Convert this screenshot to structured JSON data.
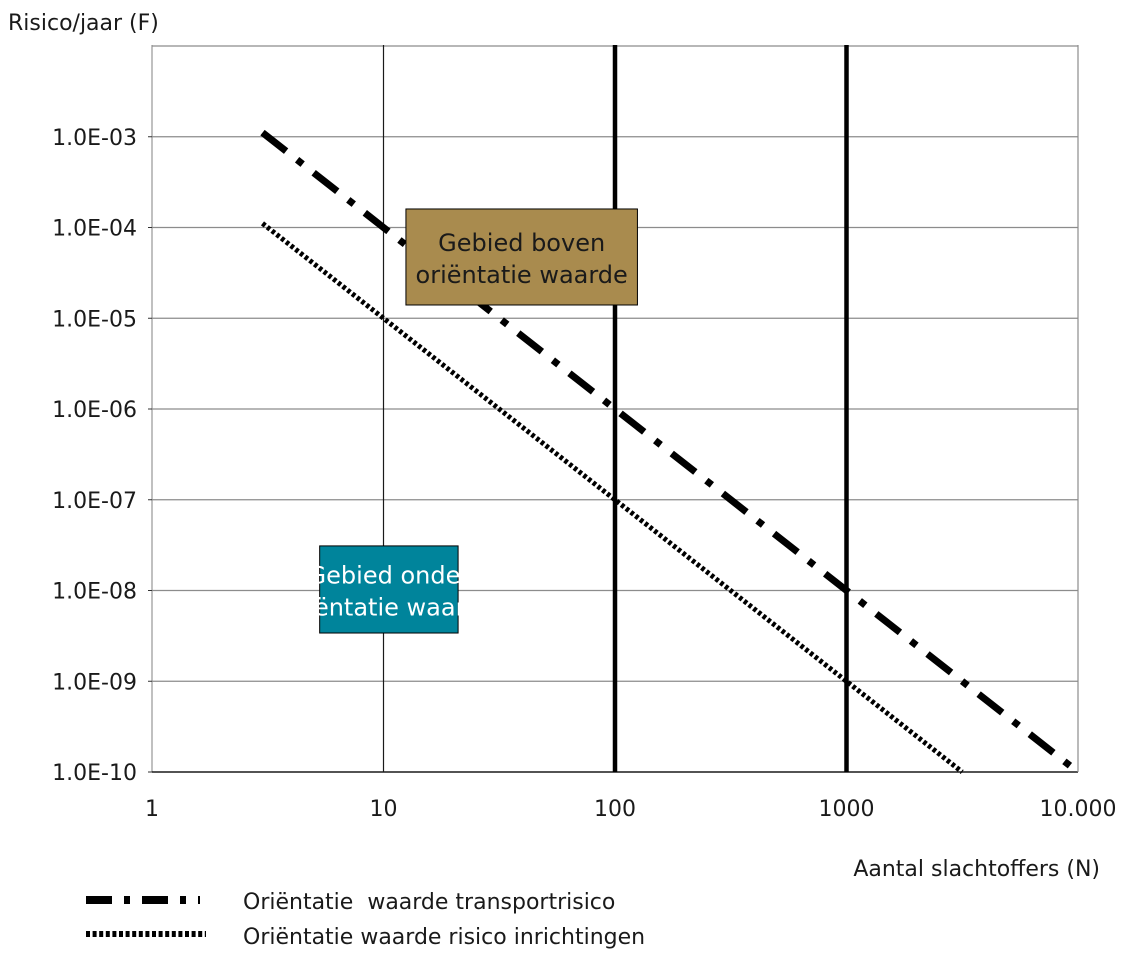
{
  "chart_data": {
    "type": "line",
    "ylabel": "Risico/jaar (F)",
    "xlabel": "Aantal slachtoffers (N)",
    "x_scale": "log",
    "y_scale": "log",
    "xlim": [
      1,
      10000
    ],
    "ylim": [
      1e-10,
      0.01
    ],
    "x_ticks": [
      {
        "value": 1,
        "label": "1"
      },
      {
        "value": 10,
        "label": "10"
      },
      {
        "value": 100,
        "label": "100"
      },
      {
        "value": 1000,
        "label": "1000"
      },
      {
        "value": 10000,
        "label": "10.000"
      }
    ],
    "y_ticks": [
      {
        "value": 0.001,
        "label": "1.0E-03"
      },
      {
        "value": 0.0001,
        "label": "1.0E-04"
      },
      {
        "value": 1e-05,
        "label": "1.0E-05"
      },
      {
        "value": 1e-06,
        "label": "1.0E-06"
      },
      {
        "value": 1e-07,
        "label": "1.0E-07"
      },
      {
        "value": 1e-08,
        "label": "1.0E-08"
      },
      {
        "value": 1e-09,
        "label": "1.0E-09"
      },
      {
        "value": 1e-10,
        "label": "1.0E-10"
      }
    ],
    "grid": true,
    "reference_lines_x": [
      100,
      1000
    ],
    "series": [
      {
        "name": "Oriëntatie  waarde transportrisico",
        "style": "dash-dot",
        "x": [
          3,
          10000
        ],
        "y": [
          0.00111,
          1e-10
        ]
      },
      {
        "name": "Oriëntatie waarde risico inrichtingen",
        "style": "dotted",
        "x": [
          3,
          3162
        ],
        "y": [
          0.000111,
          1e-10
        ]
      }
    ],
    "annotations": [
      {
        "text_lines": [
          "Gebied boven",
          "oriëntatie waarde"
        ],
        "x_range": [
          12.5,
          125
        ],
        "y_range": [
          1.4e-05,
          0.00016
        ],
        "color": "#A98B4E",
        "text_color": "#1a1a1a"
      },
      {
        "text_lines": [
          "Gebied onder",
          "oriëntatie waarde"
        ],
        "x_range": [
          5.3,
          21
        ],
        "y_range": [
          3.4e-09,
          3.1e-08
        ],
        "color": "#00849B",
        "text_color": "#ffffff"
      }
    ],
    "legend_position": "bottom-left"
  }
}
